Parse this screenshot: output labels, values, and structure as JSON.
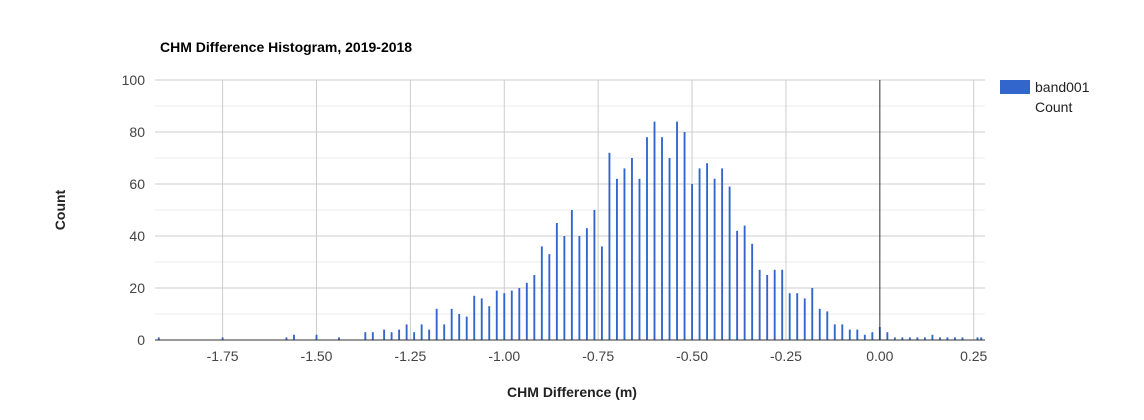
{
  "chart_data": {
    "type": "bar",
    "title": "CHM Difference Histogram, 2019-2018",
    "xlabel": "CHM Difference (m)",
    "ylabel": "Count",
    "xlim": [
      -1.93,
      0.28
    ],
    "ylim": [
      0,
      100
    ],
    "bin_width": 0.01,
    "x_ticks": [
      -1.75,
      -1.5,
      -1.25,
      -1.0,
      -0.75,
      -0.5,
      -0.25,
      0.0,
      0.25
    ],
    "x_tick_labels": [
      "-1.75",
      "-1.50",
      "-1.25",
      "-1.00",
      "-0.75",
      "-0.50",
      "-0.25",
      "0.00",
      "0.25"
    ],
    "y_ticks": [
      0,
      20,
      40,
      60,
      80,
      100
    ],
    "y_tick_labels": [
      "0",
      "20",
      "40",
      "60",
      "80",
      "100"
    ],
    "minor_y_ticks": [
      10,
      30,
      50,
      70,
      90
    ],
    "grid": true,
    "zero_line_x": 0.0,
    "legend": {
      "position": "right",
      "label": "band001",
      "sublabel": "Count"
    },
    "series": [
      {
        "name": "band001",
        "color": "#3366cc",
        "x": [
          -1.92,
          -1.75,
          -1.58,
          -1.56,
          -1.5,
          -1.44,
          -1.37,
          -1.35,
          -1.32,
          -1.3,
          -1.28,
          -1.26,
          -1.24,
          -1.22,
          -1.2,
          -1.18,
          -1.16,
          -1.14,
          -1.12,
          -1.1,
          -1.08,
          -1.06,
          -1.04,
          -1.02,
          -1.0,
          -0.98,
          -0.96,
          -0.94,
          -0.92,
          -0.9,
          -0.88,
          -0.86,
          -0.84,
          -0.82,
          -0.8,
          -0.78,
          -0.76,
          -0.74,
          -0.72,
          -0.7,
          -0.68,
          -0.66,
          -0.64,
          -0.62,
          -0.6,
          -0.58,
          -0.56,
          -0.54,
          -0.52,
          -0.5,
          -0.48,
          -0.46,
          -0.44,
          -0.42,
          -0.4,
          -0.38,
          -0.36,
          -0.34,
          -0.32,
          -0.3,
          -0.28,
          -0.26,
          -0.24,
          -0.22,
          -0.2,
          -0.18,
          -0.16,
          -0.14,
          -0.12,
          -0.1,
          -0.08,
          -0.06,
          -0.04,
          -0.02,
          0.0,
          0.02,
          0.04,
          0.06,
          0.08,
          0.1,
          0.12,
          0.14,
          0.16,
          0.18,
          0.2,
          0.22,
          0.26,
          0.27
        ],
        "values": [
          1,
          1,
          1,
          2,
          2,
          1,
          3,
          3,
          4,
          3,
          4,
          6,
          3,
          6,
          4,
          12,
          6,
          12,
          10,
          9,
          17,
          16,
          13,
          19,
          18,
          19,
          20,
          22,
          25,
          36,
          33,
          45,
          40,
          50,
          40,
          43,
          50,
          36,
          72,
          62,
          66,
          70,
          62,
          78,
          84,
          78,
          70,
          84,
          80,
          60,
          66,
          68,
          62,
          66,
          59,
          42,
          44,
          37,
          27,
          25,
          27,
          27,
          18,
          18,
          16,
          20,
          12,
          11,
          6,
          6,
          4,
          4,
          2,
          3,
          5,
          3,
          1,
          1,
          1,
          1,
          1,
          2,
          1,
          1,
          1,
          1,
          1,
          1
        ]
      }
    ]
  }
}
